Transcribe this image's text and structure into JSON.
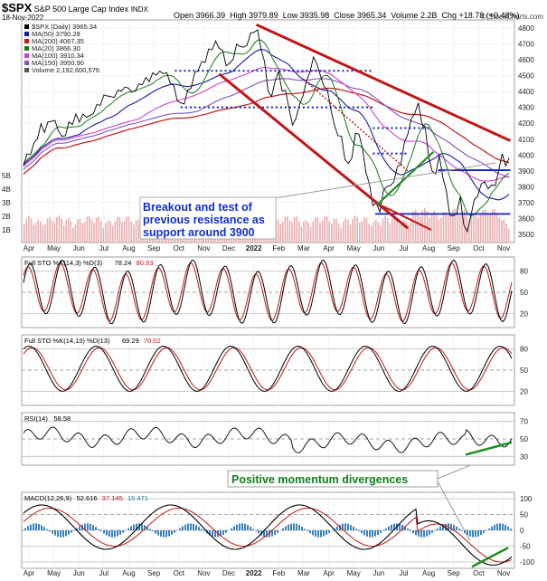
{
  "header": {
    "symbol": "$SPX",
    "name": "S&P 500 Large Cap Index",
    "exchange": "INDX",
    "date": "18-Nov-2022",
    "open_label": "Open",
    "open": "3966.39",
    "high_label": "High",
    "high": "3979.89",
    "low_label": "Low",
    "low": "3935.98",
    "close_label": "Close",
    "close": "3965.34",
    "volume_label": "Volume",
    "volume": "2.2B",
    "chg_label": "Chg",
    "chg": "+18.78 (+0.48%)",
    "credit": "© StockCharts.com"
  },
  "legend": [
    {
      "text": "$SPX (Daily) 3965.34",
      "color": "#000000"
    },
    {
      "text": "MA(50) 3790.28",
      "color": "#1a1aa0"
    },
    {
      "text": "MA(200) 4067.35",
      "color": "#c01818"
    },
    {
      "text": "MA(20) 3866.30",
      "color": "#1a7a1a"
    },
    {
      "text": "MA(100) 3910.34",
      "color": "#d040d0"
    },
    {
      "text": "MA(150) 3950.90",
      "color": "#8050c0"
    },
    {
      "text": "Volume 2,192,600,576",
      "color": "#555555"
    }
  ],
  "annotations": {
    "breakout": [
      "Breakout and test of",
      "previous resistance as",
      "support around 3900"
    ],
    "divergence": "Positive momentum divergences"
  },
  "x_labels": [
    "Apr",
    "May",
    "Jun",
    "Jul",
    "Aug",
    "Sep",
    "Oct",
    "Nov",
    "Dec",
    "2022",
    "Feb",
    "Mar",
    "Apr",
    "May",
    "Jun",
    "Jul",
    "Aug",
    "Sep",
    "Oct",
    "Nov"
  ],
  "volume_labels": [
    "5B",
    "4B",
    "3B",
    "2B",
    "1B"
  ],
  "panels": {
    "sto1": {
      "title": "Full STO %K(14,3) %D(3)",
      "k": "78.24",
      "d": "80.93",
      "levels": [
        "80",
        "50",
        "20"
      ]
    },
    "sto2": {
      "title": "Full STO %K(14,13) %D(13)",
      "k": "69.29",
      "d": "70.02",
      "levels": [
        "80",
        "50",
        "20"
      ]
    },
    "rsi": {
      "title": "RSI(14)",
      "value": "58.58",
      "levels": [
        "70",
        "50",
        "30"
      ]
    },
    "macd": {
      "title": "MACD(12,26,9)",
      "macd": "52.616",
      "signal": "37.145",
      "hist": "15.471",
      "levels": [
        "100",
        "50",
        "0",
        "-50",
        "-100"
      ]
    }
  },
  "colors": {
    "price": "#000000",
    "ma50": "#1a1aa0",
    "ma200": "#c01818",
    "ma20": "#1a7a1a",
    "ma100": "#d040d0",
    "ma150": "#8050c0",
    "trend": "#c01818",
    "support": "#1020c0",
    "green": "#209020",
    "annot_text": "#1030d0",
    "annot_green": "#10801a",
    "volume": "#e8b0b0"
  },
  "chart_data": {
    "type": "line",
    "title": "$SPX S&P 500 Large Cap Index (Daily)",
    "price_axis": [
      4800,
      4700,
      4600,
      4500,
      4400,
      4300,
      4200,
      4100,
      4000,
      3900,
      3800,
      3700,
      3600,
      3500
    ],
    "ylim": [
      3450,
      4850
    ],
    "x_months": [
      "Apr-21",
      "May-21",
      "Jun-21",
      "Jul-21",
      "Aug-21",
      "Sep-21",
      "Oct-21",
      "Nov-21",
      "Dec-21",
      "Jan-22",
      "Feb-22",
      "Mar-22",
      "Apr-22",
      "May-22",
      "Jun-22",
      "Jul-22",
      "Aug-22",
      "Sep-22",
      "Oct-22",
      "Nov-22"
    ],
    "price": [
      [
        0,
        3950
      ],
      [
        3,
        3990
      ],
      [
        6,
        4020
      ],
      [
        9,
        4060
      ],
      [
        12,
        4120
      ],
      [
        15,
        4180
      ],
      [
        18,
        4160
      ],
      [
        21,
        4190
      ],
      [
        24,
        4230
      ],
      [
        27,
        4200
      ],
      [
        30,
        4170
      ],
      [
        33,
        4100
      ],
      [
        36,
        4140
      ],
      [
        39,
        4190
      ],
      [
        42,
        4210
      ],
      [
        45,
        4240
      ],
      [
        48,
        4225
      ],
      [
        51,
        4240
      ],
      [
        54,
        4255
      ],
      [
        57,
        4230
      ],
      [
        60,
        4280
      ],
      [
        63,
        4300
      ],
      [
        66,
        4330
      ],
      [
        69,
        4360
      ],
      [
        72,
        4390
      ],
      [
        75,
        4350
      ],
      [
        78,
        4380
      ],
      [
        81,
        4390
      ],
      [
        84,
        4420
      ],
      [
        87,
        4410
      ],
      [
        90,
        4440
      ],
      [
        93,
        4380
      ],
      [
        96,
        4420
      ],
      [
        99,
        4430
      ],
      [
        102,
        4460
      ],
      [
        105,
        4470
      ],
      [
        108,
        4480
      ],
      [
        111,
        4500
      ],
      [
        114,
        4520
      ],
      [
        117,
        4510
      ],
      [
        120,
        4530
      ],
      [
        123,
        4500
      ],
      [
        126,
        4470
      ],
      [
        129,
        4420
      ],
      [
        132,
        4360
      ],
      [
        135,
        4310
      ],
      [
        138,
        4340
      ],
      [
        141,
        4390
      ],
      [
        144,
        4440
      ],
      [
        147,
        4500
      ],
      [
        150,
        4550
      ],
      [
        153,
        4570
      ],
      [
        156,
        4600
      ],
      [
        159,
        4650
      ],
      [
        162,
        4680
      ],
      [
        165,
        4700
      ],
      [
        168,
        4690
      ],
      [
        171,
        4640
      ],
      [
        174,
        4580
      ],
      [
        177,
        4560
      ],
      [
        180,
        4620
      ],
      [
        183,
        4680
      ],
      [
        186,
        4700
      ],
      [
        189,
        4660
      ],
      [
        192,
        4710
      ],
      [
        195,
        4750
      ],
      [
        198,
        4790
      ],
      [
        201,
        4770
      ],
      [
        204,
        4680
      ],
      [
        207,
        4570
      ],
      [
        210,
        4420
      ],
      [
        213,
        4350
      ],
      [
        216,
        4480
      ],
      [
        219,
        4510
      ],
      [
        222,
        4420
      ],
      [
        225,
        4390
      ],
      [
        228,
        4310
      ],
      [
        231,
        4170
      ],
      [
        234,
        4250
      ],
      [
        237,
        4300
      ],
      [
        240,
        4390
      ],
      [
        243,
        4450
      ],
      [
        246,
        4540
      ],
      [
        249,
        4600
      ],
      [
        252,
        4590
      ],
      [
        255,
        4480
      ],
      [
        258,
        4450
      ],
      [
        261,
        4390
      ],
      [
        264,
        4300
      ],
      [
        267,
        4170
      ],
      [
        270,
        4140
      ],
      [
        273,
        4100
      ],
      [
        276,
        3990
      ],
      [
        279,
        3930
      ],
      [
        282,
        4000
      ],
      [
        285,
        4120
      ],
      [
        288,
        4150
      ],
      [
        291,
        4030
      ],
      [
        294,
        3910
      ],
      [
        297,
        3800
      ],
      [
        300,
        3700
      ],
      [
        303,
        3680
      ],
      [
        306,
        3660
      ],
      [
        309,
        3760
      ],
      [
        312,
        3820
      ],
      [
        315,
        3790
      ],
      [
        318,
        3850
      ],
      [
        321,
        3910
      ],
      [
        324,
        3960
      ],
      [
        327,
        4060
      ],
      [
        330,
        4150
      ],
      [
        333,
        4210
      ],
      [
        336,
        4280
      ],
      [
        339,
        4310
      ],
      [
        342,
        4220
      ],
      [
        345,
        4150
      ],
      [
        348,
        4000
      ],
      [
        351,
        3880
      ],
      [
        354,
        3900
      ],
      [
        357,
        3980
      ],
      [
        360,
        3880
      ],
      [
        363,
        3760
      ],
      [
        366,
        3640
      ],
      [
        369,
        3600
      ],
      [
        372,
        3650
      ],
      [
        375,
        3720
      ],
      [
        378,
        3580
      ],
      [
        381,
        3500
      ],
      [
        384,
        3630
      ],
      [
        387,
        3700
      ],
      [
        390,
        3760
      ],
      [
        393,
        3800
      ],
      [
        396,
        3850
      ],
      [
        399,
        3770
      ],
      [
        402,
        3830
      ],
      [
        405,
        3790
      ],
      [
        408,
        3920
      ],
      [
        411,
        3990
      ],
      [
        414,
        3950
      ],
      [
        417,
        3965
      ]
    ],
    "volume_scale": "B",
    "sto_14_3": {
      "k": 78.24,
      "d": 80.93
    },
    "sto_14_13": {
      "k": 69.29,
      "d": 70.02
    },
    "rsi_14": 58.58,
    "macd": {
      "macd": 52.616,
      "signal": 37.145,
      "histogram": 15.471
    }
  }
}
